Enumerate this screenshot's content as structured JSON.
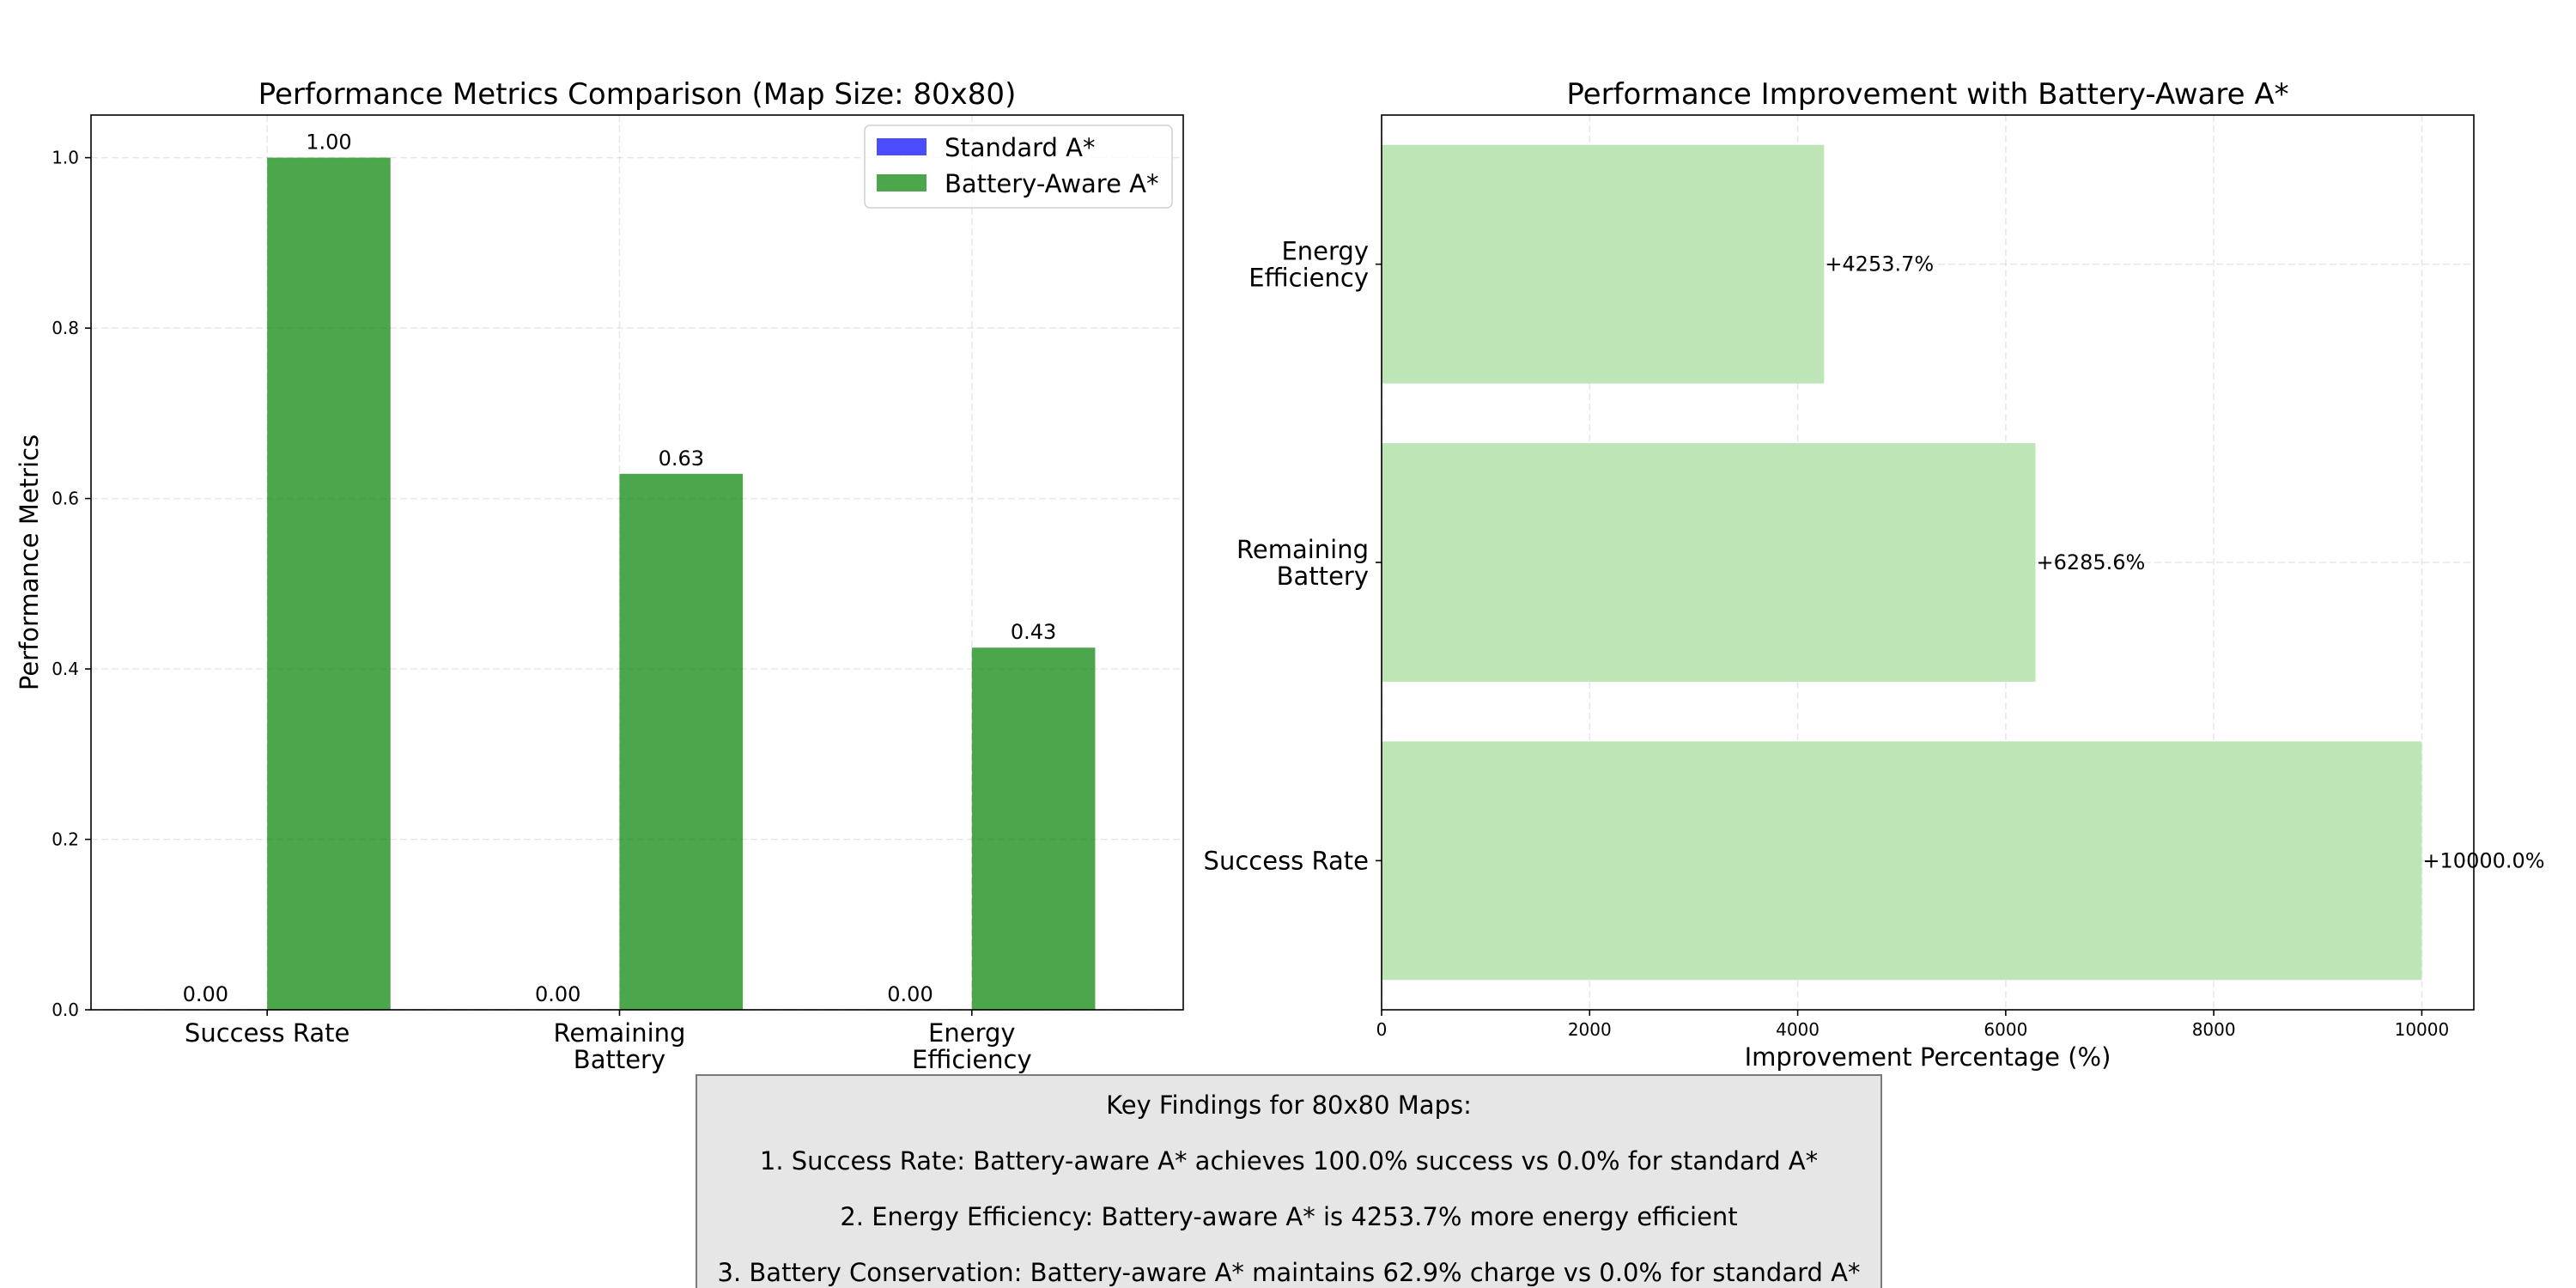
{
  "chart_data": [
    {
      "type": "bar",
      "title": "Performance Metrics Comparison (Map Size: 80x80)",
      "xlabel": "",
      "ylabel": "Performance Metrics",
      "categories": [
        "Success Rate",
        "Remaining\nBattery",
        "Energy\nEfficiency"
      ],
      "series": [
        {
          "name": "Standard A*",
          "color": "#0000ff",
          "values": [
            0.0,
            0.0,
            0.0
          ],
          "labels": [
            "0.00",
            "0.00",
            "0.00"
          ]
        },
        {
          "name": "Battery-Aware A*",
          "color": "#008000",
          "values": [
            1.0,
            0.629,
            0.425
          ],
          "labels": [
            "1.00",
            "0.63",
            "0.43"
          ]
        }
      ],
      "ylim": [
        0,
        1.05
      ],
      "yticks": [
        0.0,
        0.2,
        0.4,
        0.6,
        0.8,
        1.0
      ],
      "ytick_labels": [
        "0.0",
        "0.2",
        "0.4",
        "0.6",
        "0.8",
        "1.0"
      ],
      "grid": true,
      "legend_position": "top-right"
    },
    {
      "type": "bar",
      "orientation": "horizontal",
      "title": "Performance Improvement with Battery-Aware A*",
      "xlabel": "Improvement Percentage (%)",
      "ylabel": "",
      "categories": [
        "Success Rate",
        "Remaining\nBattery",
        "Energy\nEfficiency"
      ],
      "values": [
        10000.0,
        6285.6,
        4253.7
      ],
      "labels": [
        "+10000.0%",
        "+6285.6%",
        "+4253.7%"
      ],
      "color": "#bde5b6",
      "xlim": [
        0,
        10500
      ],
      "xticks": [
        0,
        2000,
        4000,
        6000,
        8000,
        10000
      ],
      "xtick_labels": [
        "0",
        "2000",
        "4000",
        "6000",
        "8000",
        "10000"
      ],
      "grid": true
    }
  ],
  "findings": {
    "title": "Key Findings for 80x80 Maps:",
    "lines": [
      "1. Success Rate: Battery-aware A* achieves 100.0% success vs 0.0% for standard A*",
      "2. Energy Efficiency: Battery-aware A* is 4253.7% more energy efficient",
      "3. Battery Conservation: Battery-aware A* maintains 62.9% charge vs 0.0% for standard A*"
    ]
  }
}
